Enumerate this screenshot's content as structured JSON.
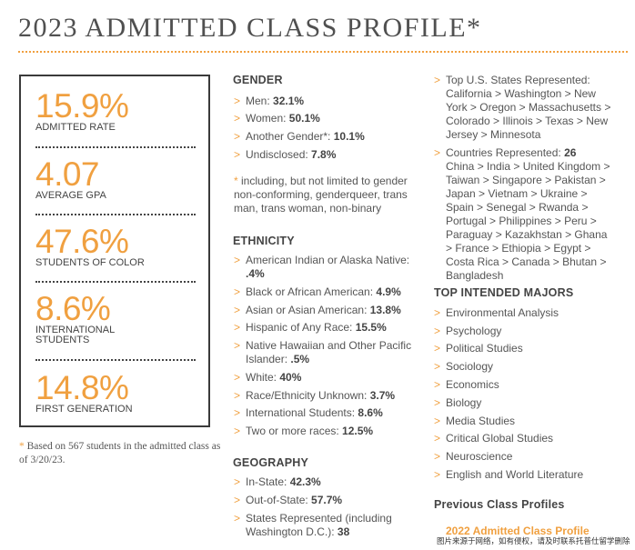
{
  "title": "2023 ADMITTED CLASS PROFILE*",
  "colors": {
    "accent": "#f0a040",
    "text": "#555555",
    "border": "#3a3a3a"
  },
  "stats": [
    {
      "value": "15.9%",
      "label": "ADMITTED RATE"
    },
    {
      "value": "4.07",
      "label": "AVERAGE GPA"
    },
    {
      "value": "47.6%",
      "label": "STUDENTS OF COLOR"
    },
    {
      "value": "8.6%",
      "label_line1": "INTERNATIONAL",
      "label_line2": "STUDENTS"
    },
    {
      "value": "14.8%",
      "label": "FIRST GENERATION"
    }
  ],
  "footnote": {
    "star": "*",
    "text": " Based on 567 students in the admitted class as of 3/20/23."
  },
  "gender": {
    "heading": "GENDER",
    "items": [
      {
        "label": "Men: ",
        "value": "32.1%"
      },
      {
        "label": "Women: ",
        "value": "50.1%"
      },
      {
        "label": "Another Gender*: ",
        "value": "10.1%"
      },
      {
        "label": "Undisclosed: ",
        "value": "7.8%"
      }
    ],
    "note_star": "*",
    "note": " including, but not limited to gender non-conforming, genderqueer, trans man, trans woman, non-binary"
  },
  "ethnicity": {
    "heading": "ETHNICITY",
    "items": [
      {
        "label": "American Indian or Alaska Native: ",
        "value": ".4%"
      },
      {
        "label": "Black or African American: ",
        "value": "4.9%"
      },
      {
        "label": "Asian or Asian American: ",
        "value": "13.8%"
      },
      {
        "label": "Hispanic of Any Race: ",
        "value": "15.5%"
      },
      {
        "label": "Native Hawaiian and Other Pacific Islander: ",
        "value": ".5%"
      },
      {
        "label": "White: ",
        "value": "40%"
      },
      {
        "label": "Race/Ethnicity Unknown: ",
        "value": "3.7%"
      },
      {
        "label": "International Students: ",
        "value": "8.6%"
      },
      {
        "label": "Two or more races: ",
        "value": "12.5%"
      }
    ]
  },
  "geography": {
    "heading": "GEOGRAPHY",
    "items": [
      {
        "label": "In-State: ",
        "value": "42.3%"
      },
      {
        "label": "Out-of-State: ",
        "value": "57.7%"
      },
      {
        "label": "States Represented (including Washington D.C.): ",
        "value": "38"
      }
    ]
  },
  "right": {
    "top_states": "Top U.S. States Represented: California > Washington > New York > Oregon > Massachusetts > Colorado > Illinois > Texas > New Jersey > Minnesota",
    "countries_label": "Countries Represented: ",
    "countries_value": "26",
    "countries_list": "China > India > United Kingdom > Taiwan > Singapore > Pakistan > Japan > Vietnam > Ukraine > Spain > Senegal > Rwanda > Portugal > Philippines > Peru > Paraguay > Kazakhstan > Ghana > France > Ethiopia > Egypt > Costa Rica > Canada > Bhutan > Bangladesh",
    "majors_heading": "TOP INTENDED MAJORS",
    "majors": [
      "Environmental Analysis",
      "Psychology",
      "Political Studies",
      "Sociology",
      "Economics",
      "Biology",
      "Media Studies",
      "Critical Global Studies",
      "Neuroscience",
      "English and World Literature"
    ],
    "previous_heading": "Previous Class Profiles",
    "previous_link": "2022 Admitted Class Profile"
  },
  "chevron": ">",
  "watermark": "图片来源于网络，如有侵权，请及时联系托普仕留学删除"
}
